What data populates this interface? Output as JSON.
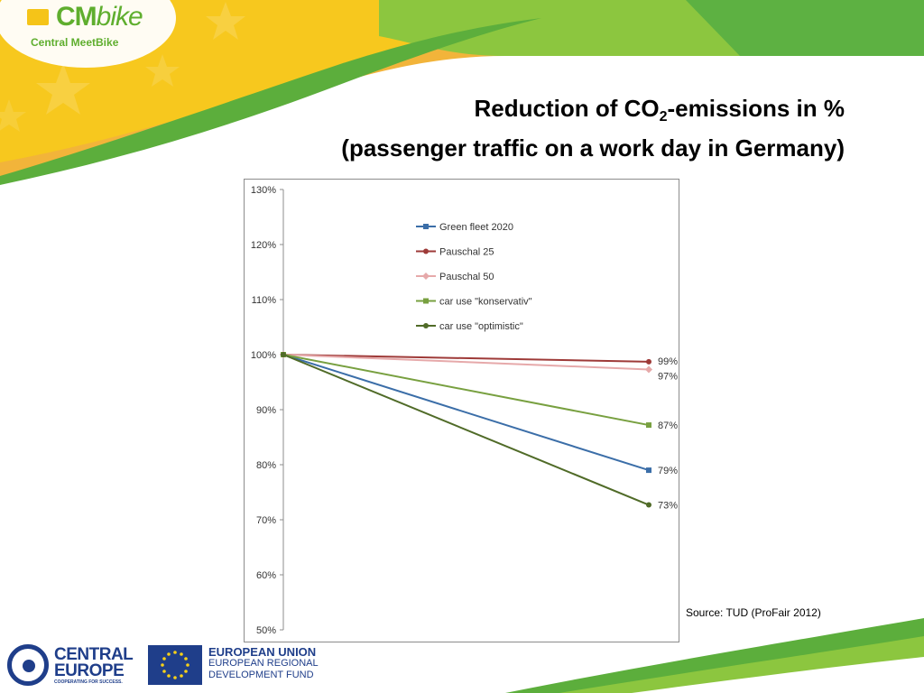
{
  "logo": {
    "brand_cm": "CM",
    "brand_bike": "bike",
    "subtitle": "Central MeetBike"
  },
  "title": {
    "line1_pre": "Reduction of CO",
    "line1_sub": "2",
    "line1_post": "-emissions  in %",
    "line2": "(passenger traffic on a work day in Germany)"
  },
  "source": "Source: TUD (ProFair 2012)",
  "footer": {
    "ce_word1": "CENTRAL",
    "ce_word2": "EUROPE",
    "ce_tagline": "COOPERATING FOR SUCCESS.",
    "eu_line1": "EUROPEAN UNION",
    "eu_line2": "EUROPEAN REGIONAL",
    "eu_line3": "DEVELOPMENT FUND"
  },
  "colors": {
    "banner_green_light": "#8cc63f",
    "banner_green_dark": "#4ea43a",
    "banner_orange": "#f0a020",
    "banner_yellow": "#f7c81e"
  },
  "chart_data": {
    "type": "line",
    "x": [
      0,
      1
    ],
    "ylim": [
      0.5,
      1.3
    ],
    "yticks": [
      "50%",
      "60%",
      "70%",
      "80%",
      "90%",
      "100%",
      "110%",
      "120%",
      "130%"
    ],
    "grid": false,
    "legend_position": "top-left",
    "series": [
      {
        "name": "Green fleet 2020",
        "values": [
          1.0,
          0.79
        ],
        "color": "#3b6ea8",
        "marker": "square",
        "end_label": "79%"
      },
      {
        "name": "Pauschal 25",
        "values": [
          1.0,
          0.987
        ],
        "color": "#9e3a38",
        "marker": "circle",
        "end_label": "99%"
      },
      {
        "name": "Pauschal 50",
        "values": [
          1.0,
          0.973
        ],
        "color": "#e6a9aa",
        "marker": "diamond",
        "end_label": "97%"
      },
      {
        "name": "car use \"konservativ\"",
        "values": [
          1.0,
          0.872
        ],
        "color": "#78a040",
        "marker": "square",
        "end_label": "87%"
      },
      {
        "name": "car use \"optimistic\"",
        "values": [
          1.0,
          0.727
        ],
        "color": "#506b28",
        "marker": "circle",
        "end_label": "73%"
      }
    ]
  }
}
